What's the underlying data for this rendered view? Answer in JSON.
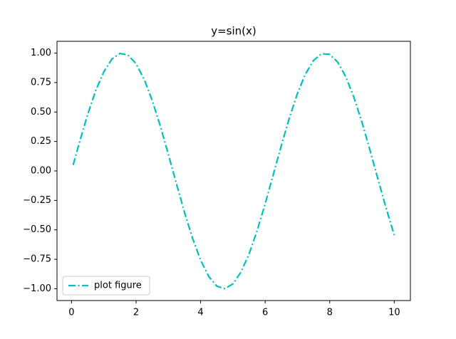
{
  "chart_data": {
    "type": "line",
    "title": "y=sin(x)",
    "x": [
      0.05,
      0.25,
      0.5,
      0.75,
      1.0,
      1.25,
      1.5,
      1.75,
      2.0,
      2.25,
      2.5,
      2.75,
      3.0,
      3.25,
      3.5,
      3.75,
      4.0,
      4.25,
      4.5,
      4.75,
      5.0,
      5.25,
      5.5,
      5.75,
      6.0,
      6.25,
      6.5,
      6.75,
      7.0,
      7.25,
      7.5,
      7.75,
      8.0,
      8.25,
      8.5,
      8.75,
      9.0,
      9.25,
      9.5,
      9.75,
      10.0
    ],
    "series": [
      {
        "name": "plot figure",
        "color": "#00bfbf",
        "values": [
          0.05,
          0.247,
          0.479,
          0.682,
          0.841,
          0.949,
          0.997,
          0.984,
          0.909,
          0.778,
          0.598,
          0.382,
          0.141,
          -0.108,
          -0.351,
          -0.572,
          -0.757,
          -0.895,
          -0.978,
          -0.999,
          -0.959,
          -0.859,
          -0.706,
          -0.508,
          -0.279,
          -0.033,
          0.215,
          0.45,
          0.657,
          0.823,
          0.938,
          0.995,
          0.989,
          0.923,
          0.798,
          0.624,
          0.412,
          0.174,
          -0.075,
          -0.319,
          -0.544
        ]
      }
    ],
    "xlim": [
      -0.45,
      10.5
    ],
    "ylim": [
      -1.1,
      1.1
    ],
    "xticks": [
      0,
      2,
      4,
      6,
      8,
      10
    ],
    "yticks": [
      {
        "value": 1.0,
        "label": "1.00"
      },
      {
        "value": 0.75,
        "label": "0.75"
      },
      {
        "value": 0.5,
        "label": "0.50"
      },
      {
        "value": 0.25,
        "label": "0.25"
      },
      {
        "value": 0.0,
        "label": "0.00"
      },
      {
        "value": -0.25,
        "label": "−0.25"
      },
      {
        "value": -0.5,
        "label": "−0.50"
      },
      {
        "value": -0.75,
        "label": "−0.75"
      },
      {
        "value": -1.0,
        "label": "−1.00"
      }
    ],
    "legend": "lower left"
  }
}
